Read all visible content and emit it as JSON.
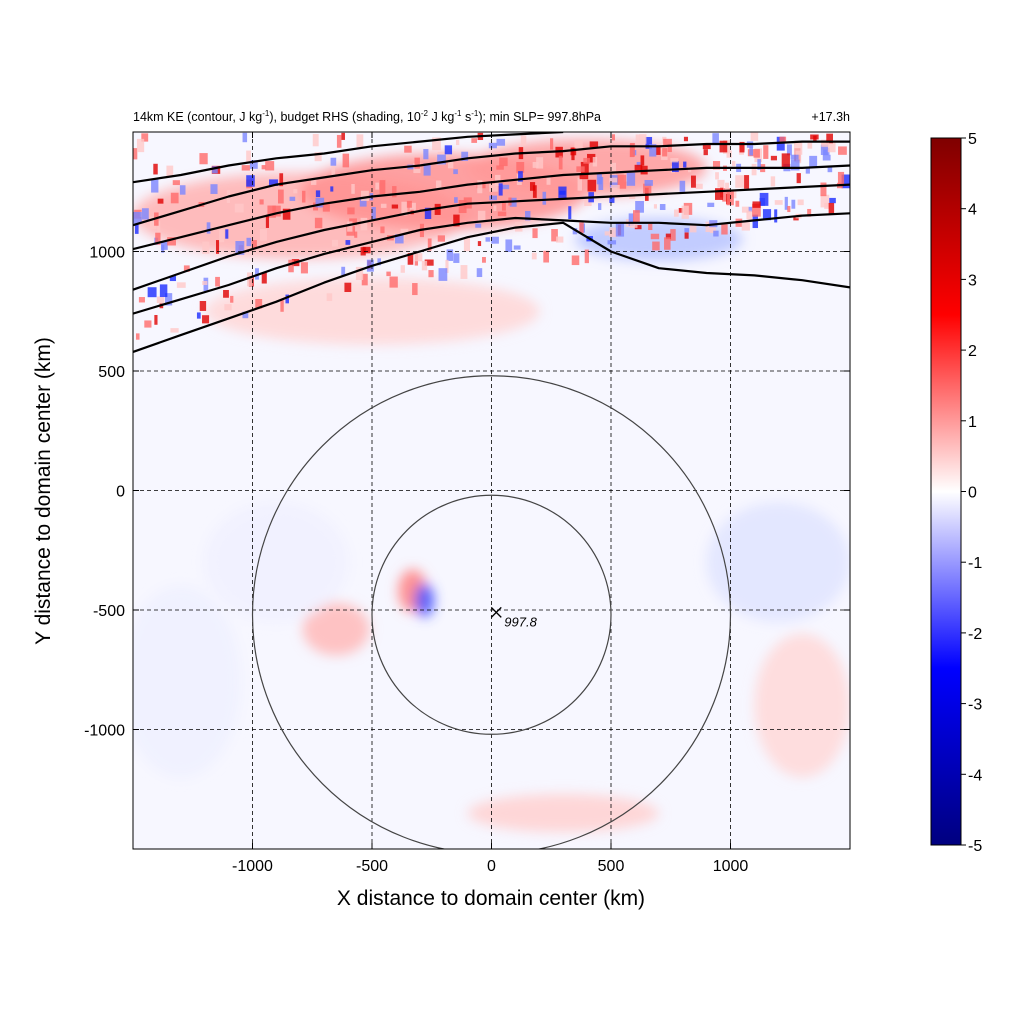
{
  "chart_data": {
    "type": "heatmap",
    "title_left_segments": {
      "a": "14km KE (contour, J kg",
      "a_sup": "-1",
      "b": "), budget RHS (shading, 10",
      "b_sup": "-2",
      "c": " J kg",
      "c_sup": "-1",
      "d": " s",
      "d_sup": "-1",
      "e": "); min SLP= 997.8hPa"
    },
    "title_right": "+17.3h",
    "xlabel": "X distance to domain center (km)",
    "ylabel": "Y distance to domain center (km)",
    "xlim": [
      -1500,
      1500
    ],
    "ylim": [
      -1500,
      1500
    ],
    "xticks": [
      -1000,
      -500,
      0,
      500,
      1000
    ],
    "yticks": [
      -1000,
      -500,
      0,
      500,
      1000
    ],
    "xtick_labels": [
      "-1000",
      "-500",
      "0",
      "500",
      "1000"
    ],
    "ytick_labels": [
      "-1000",
      "-500",
      "0",
      "500",
      "1000"
    ],
    "grid": true,
    "colorbar": {
      "range": [
        -5,
        5
      ],
      "ticks": [
        5,
        4,
        3,
        2,
        1,
        0,
        -1,
        -2,
        -3,
        -4,
        -5
      ],
      "tick_labels": [
        "5",
        "4",
        "3",
        "2",
        "1",
        "0",
        "-1",
        "-2",
        "-3",
        "-4",
        "-5"
      ],
      "colormap": "seismic (blue-white-red)"
    },
    "center_marker": {
      "x": 20,
      "y": -510,
      "label": "997.8"
    },
    "range_rings": [
      {
        "cx": 0,
        "cy": -520,
        "r": 500
      },
      {
        "cx": 0,
        "cy": -520,
        "r": 1000
      }
    ],
    "ke_contours": [
      [
        [
          -1500,
          580
        ],
        [
          -1300,
          650
        ],
        [
          -1100,
          720
        ],
        [
          -900,
          790
        ],
        [
          -700,
          870
        ],
        [
          -500,
          940
        ],
        [
          -300,
          1000
        ],
        [
          -100,
          1060
        ],
        [
          100,
          1100
        ],
        [
          300,
          1120
        ],
        [
          500,
          1000
        ],
        [
          700,
          930
        ],
        [
          900,
          910
        ],
        [
          1100,
          900
        ],
        [
          1300,
          880
        ],
        [
          1500,
          850
        ]
      ],
      [
        [
          -1500,
          740
        ],
        [
          -1300,
          800
        ],
        [
          -1100,
          860
        ],
        [
          -900,
          930
        ],
        [
          -700,
          990
        ],
        [
          -500,
          1040
        ],
        [
          -300,
          1090
        ],
        [
          -100,
          1120
        ],
        [
          100,
          1140
        ],
        [
          300,
          1130
        ],
        [
          500,
          1120
        ],
        [
          700,
          1120
        ],
        [
          900,
          1110
        ],
        [
          1100,
          1130
        ],
        [
          1300,
          1150
        ],
        [
          1500,
          1160
        ]
      ],
      [
        [
          -1500,
          840
        ],
        [
          -1300,
          910
        ],
        [
          -1100,
          980
        ],
        [
          -900,
          1040
        ],
        [
          -700,
          1090
        ],
        [
          -500,
          1130
        ],
        [
          -300,
          1170
        ],
        [
          -100,
          1200
        ],
        [
          100,
          1210
        ],
        [
          300,
          1220
        ],
        [
          500,
          1230
        ],
        [
          700,
          1240
        ],
        [
          900,
          1250
        ],
        [
          1100,
          1260
        ],
        [
          1300,
          1270
        ],
        [
          1500,
          1280
        ]
      ],
      [
        [
          -1500,
          1010
        ],
        [
          -1300,
          1060
        ],
        [
          -1100,
          1110
        ],
        [
          -900,
          1160
        ],
        [
          -700,
          1200
        ],
        [
          -500,
          1230
        ],
        [
          -300,
          1250
        ],
        [
          -100,
          1280
        ],
        [
          100,
          1300
        ],
        [
          300,
          1320
        ],
        [
          500,
          1330
        ],
        [
          700,
          1340
        ],
        [
          900,
          1350
        ],
        [
          1100,
          1350
        ],
        [
          1300,
          1350
        ],
        [
          1500,
          1360
        ]
      ],
      [
        [
          -1500,
          1110
        ],
        [
          -1300,
          1170
        ],
        [
          -1100,
          1230
        ],
        [
          -900,
          1280
        ],
        [
          -700,
          1310
        ],
        [
          -500,
          1340
        ],
        [
          -300,
          1360
        ],
        [
          -100,
          1390
        ],
        [
          100,
          1410
        ],
        [
          300,
          1420
        ],
        [
          500,
          1440
        ],
        [
          700,
          1440
        ],
        [
          900,
          1450
        ],
        [
          1100,
          1450
        ],
        [
          1300,
          1460
        ],
        [
          1500,
          1460
        ]
      ],
      [
        [
          -1500,
          1290
        ],
        [
          -1300,
          1320
        ],
        [
          -1100,
          1360
        ],
        [
          -900,
          1390
        ],
        [
          -700,
          1410
        ],
        [
          -500,
          1440
        ],
        [
          -300,
          1460
        ],
        [
          -100,
          1480
        ],
        [
          100,
          1490
        ],
        [
          300,
          1500
        ]
      ]
    ]
  }
}
